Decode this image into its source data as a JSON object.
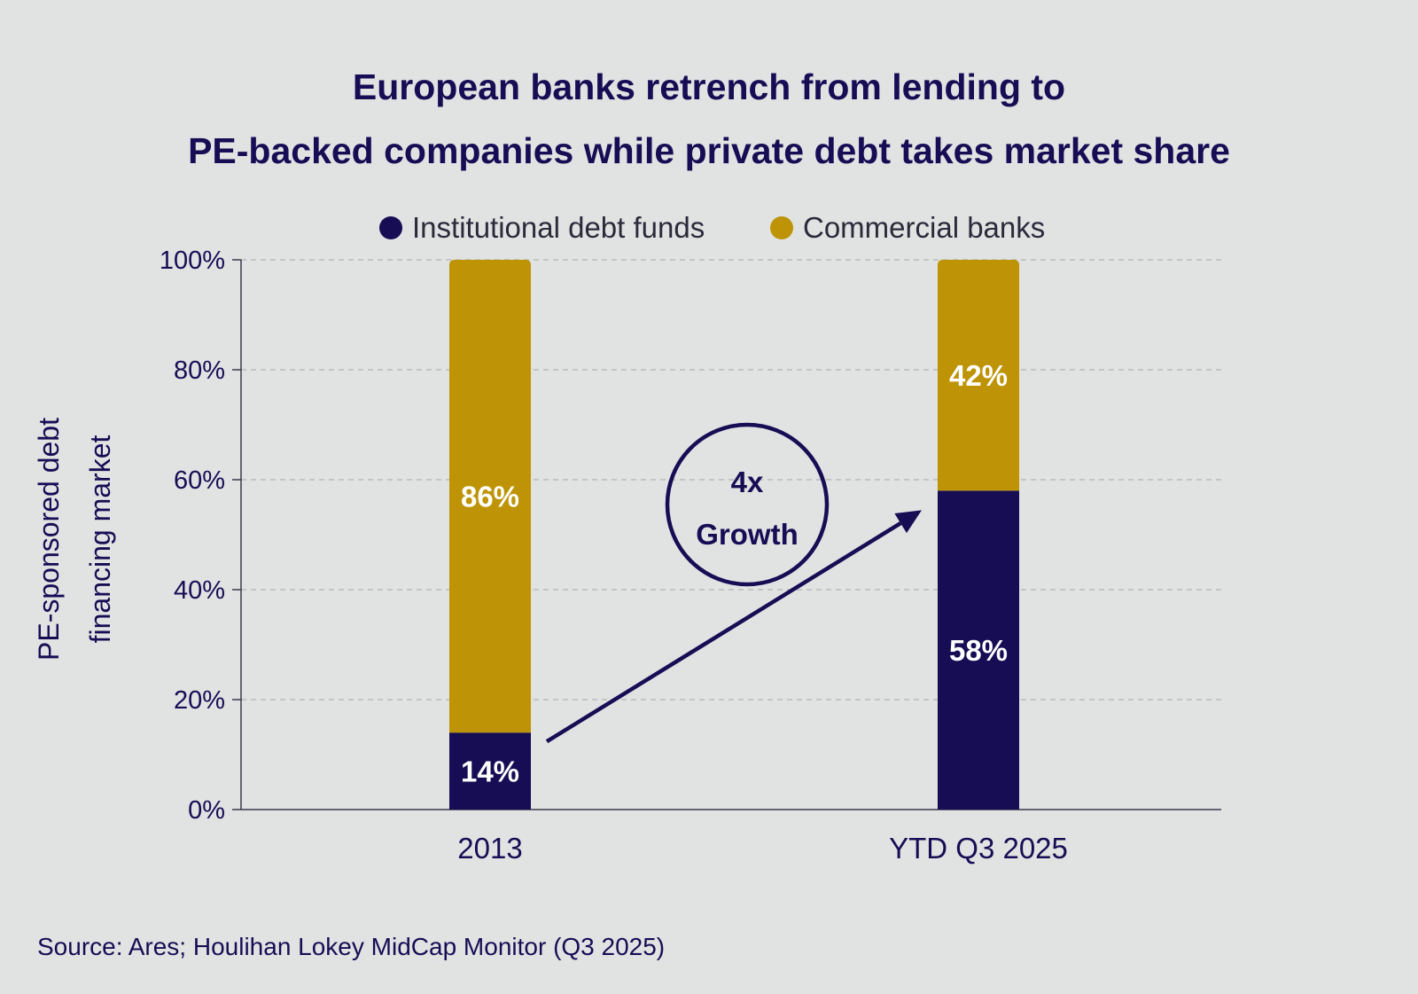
{
  "chart_data": {
    "type": "bar",
    "stacked": true,
    "title": "European banks retrench from lending to PE-backed companies while private debt takes market share",
    "title_lines": [
      "European banks retrench from lending to",
      "PE-backed companies while private debt takes market share"
    ],
    "ylabel_lines": [
      "PE-sponsored debt",
      "financing market"
    ],
    "categories": [
      "2013",
      "YTD Q3 2025"
    ],
    "series": [
      {
        "name": "Institutional debt funds",
        "values": [
          14,
          58
        ],
        "labels": [
          "14%",
          "58%"
        ],
        "color": "#160d55"
      },
      {
        "name": "Commercial banks",
        "values": [
          86,
          42
        ],
        "labels": [
          "86%",
          "42%"
        ],
        "color": "#be9406"
      }
    ],
    "ylim": [
      0,
      100
    ],
    "yticks": [
      0,
      20,
      40,
      60,
      80,
      100
    ],
    "ytick_labels": [
      "0%",
      "20%",
      "40%",
      "60%",
      "80%",
      "100%"
    ],
    "grid": true,
    "legend": "top-center",
    "annotation": {
      "lines": [
        "4x",
        "Growth"
      ]
    }
  },
  "source": "Source: Ares; Houlihan Lokey MidCap Monitor (Q3 2025)",
  "colors": {
    "background": "#e1e2e2",
    "navy": "#160d55",
    "gold": "#be9406",
    "grid": "#b9b9b9",
    "axis": "#3a3a4a"
  }
}
